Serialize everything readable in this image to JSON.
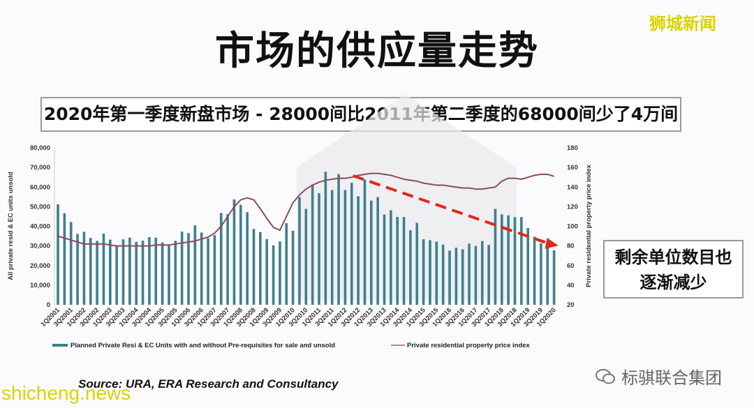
{
  "title": "市场的供应量走势",
  "subtitle": "2020年第一季度新盘市场 - 28000间比2011年第二季度的68000间少了4万间",
  "callout": {
    "line1": "剩余单位数目也",
    "line2": "逐渐减少"
  },
  "source": "Source: URA, ERA Research and Consultancy",
  "watermarks": {
    "brand": "狮城新闻",
    "site": "shicheng.news",
    "group": "标骐联合集团",
    "group_icon": "wechat-icon"
  },
  "colors": {
    "bars": "#3f7f8c",
    "line": "#8e4a5a",
    "trend_arrow": "#e0281c",
    "brand": "#d9d200"
  },
  "chart_data": {
    "type": "bar+line",
    "quarters": [
      "1Q2001",
      "2Q2001",
      "3Q2001",
      "4Q2001",
      "1Q2002",
      "2Q2002",
      "3Q2002",
      "4Q2002",
      "1Q2003",
      "2Q2003",
      "3Q2003",
      "4Q2003",
      "1Q2004",
      "2Q2004",
      "3Q2004",
      "4Q2004",
      "1Q2005",
      "2Q2005",
      "3Q2005",
      "4Q2005",
      "1Q2006",
      "2Q2006",
      "3Q2006",
      "4Q2006",
      "1Q2007",
      "2Q2007",
      "3Q2007",
      "4Q2007",
      "1Q2008",
      "2Q2008",
      "3Q2008",
      "4Q2008",
      "1Q2009",
      "2Q2009",
      "3Q2009",
      "4Q2009",
      "1Q2010",
      "2Q2010",
      "3Q2010",
      "4Q2010",
      "1Q2011",
      "2Q2011",
      "3Q2011",
      "4Q2011",
      "1Q2012",
      "2Q2012",
      "3Q2012",
      "4Q2012",
      "1Q2013",
      "2Q2013",
      "3Q2013",
      "4Q2013",
      "1Q2014",
      "2Q2014",
      "3Q2014",
      "4Q2014",
      "1Q2015",
      "2Q2015",
      "3Q2015",
      "4Q2015",
      "1Q2016",
      "2Q2016",
      "3Q2016",
      "4Q2016",
      "1Q2017",
      "2Q2017",
      "3Q2017",
      "4Q2017",
      "1Q2018",
      "2Q2018",
      "3Q2018",
      "4Q2018",
      "1Q2019",
      "2Q2019",
      "3Q2019",
      "4Q2019",
      "1Q2020"
    ],
    "tick_labels": [
      "1Q2001",
      "3Q2001",
      "1Q2002",
      "3Q2002",
      "1Q2003",
      "3Q2003",
      "1Q2004",
      "3Q2004",
      "1Q2005",
      "3Q2005",
      "1Q2006",
      "3Q2006",
      "1Q2007",
      "3Q2007",
      "1Q2008",
      "3Q2008",
      "1Q2009",
      "3Q2009",
      "1Q2010",
      "3Q2010",
      "1Q2011",
      "3Q2011",
      "1Q2012",
      "3Q2012",
      "1Q2013",
      "3Q2013",
      "1Q2014",
      "3Q2014",
      "1Q2015",
      "3Q2015",
      "1Q2016",
      "3Q2016",
      "1Q2017",
      "3Q2017",
      "1Q2018",
      "3Q2018",
      "1Q2019",
      "3Q2019",
      "1Q2020"
    ],
    "series": [
      {
        "name": "Planned Private Resi & EC Units with and without Pre-requisites for sale and unsold",
        "type": "bar",
        "axis": "left",
        "values": [
          51200,
          46700,
          42200,
          36100,
          37200,
          34100,
          32600,
          36300,
          33200,
          30200,
          33400,
          34200,
          32100,
          32700,
          34500,
          34200,
          31800,
          30600,
          32600,
          37300,
          36500,
          40500,
          36800,
          33900,
          35500,
          46800,
          46200,
          53700,
          51000,
          47200,
          38700,
          37100,
          33500,
          30300,
          32300,
          41600,
          37700,
          54900,
          48900,
          61300,
          56900,
          67800,
          58500,
          66600,
          58500,
          62200,
          55300,
          63900,
          53100,
          54900,
          46000,
          48200,
          44800,
          44800,
          38000,
          41800,
          33400,
          32900,
          32200,
          30700,
          27600,
          29100,
          28300,
          31200,
          30000,
          32500,
          30500,
          48900,
          46100,
          45600,
          44700,
          44700,
          39100,
          34700,
          31400,
          30200,
          27800
        ]
      },
      {
        "name": "Private residential property price index",
        "type": "line",
        "axis": "right",
        "values": [
          90,
          88,
          86,
          84,
          82,
          82,
          82,
          82,
          81,
          80,
          80,
          80,
          80,
          80,
          80,
          81,
          81,
          81,
          82,
          83,
          84,
          85,
          87,
          89,
          93,
          100,
          110,
          120,
          127,
          129,
          127,
          118,
          108,
          99,
          96,
          110,
          124,
          132,
          138,
          142,
          145,
          147,
          148,
          149,
          149,
          150,
          152,
          153,
          154,
          154,
          153,
          152,
          150,
          148,
          147,
          146,
          144,
          143,
          142,
          142,
          141,
          140,
          139,
          139,
          138,
          138,
          139,
          140,
          146,
          149,
          149,
          148,
          150,
          152,
          153,
          153,
          151
        ]
      }
    ],
    "left_axis": {
      "label": "All private resid & EC units unsold",
      "range": [
        0,
        80000
      ],
      "ticks": [
        "0",
        "10,000",
        "20,000",
        "30,000",
        "40,000",
        "50,000",
        "60,000",
        "70,000",
        "80,000"
      ]
    },
    "right_axis": {
      "label": "Private residential property price index",
      "range": [
        20,
        180
      ],
      "ticks": [
        "20",
        "40",
        "60",
        "80",
        "100",
        "120",
        "140",
        "160",
        "180"
      ]
    },
    "trend_arrow": {
      "from": "2Q2012",
      "to": "1Q2020",
      "style": "dashed"
    },
    "legend_placement": "bottom",
    "grid": false
  }
}
